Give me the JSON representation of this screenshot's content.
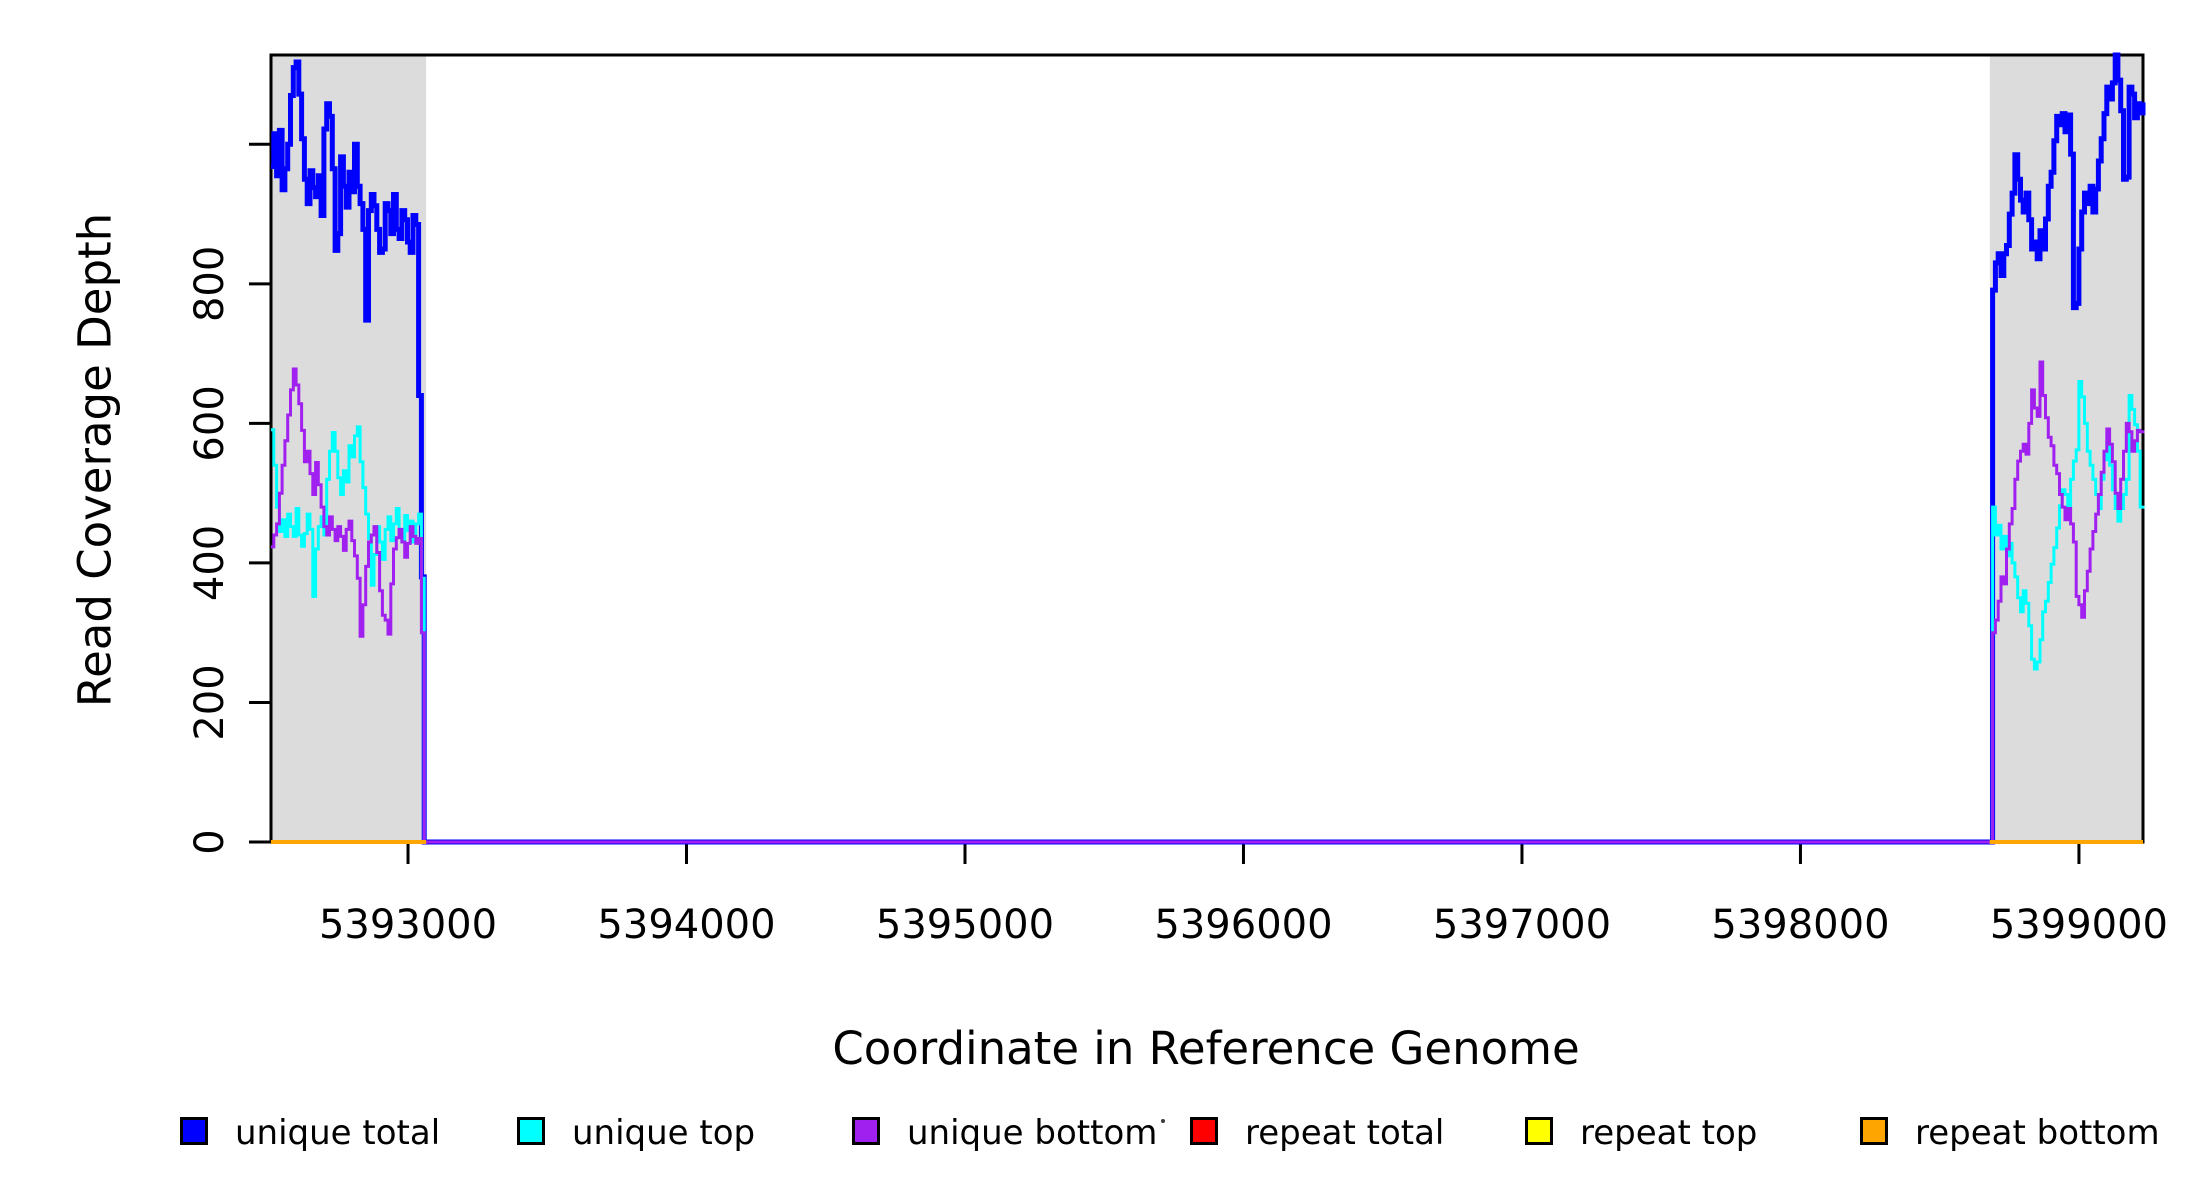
{
  "chart_data": {
    "type": "line",
    "subtype": "step-coverage",
    "title": "",
    "xlabel": "Coordinate in Reference Genome",
    "ylabel": "Read Coverage Depth",
    "xlim": [
      5392508,
      5399230
    ],
    "ylim": [
      0,
      1128
    ],
    "grid": false,
    "background": "#ffffff",
    "plot_box_color": "#000000",
    "x_ticks": [
      {
        "v": 5393000,
        "label": "5393000"
      },
      {
        "v": 5394000,
        "label": "5394000"
      },
      {
        "v": 5395000,
        "label": "5395000"
      },
      {
        "v": 5396000,
        "label": "5396000"
      },
      {
        "v": 5397000,
        "label": "5397000"
      },
      {
        "v": 5398000,
        "label": "5398000"
      },
      {
        "v": 5399000,
        "label": "5399000"
      }
    ],
    "y_ticks": [
      {
        "v": 0,
        "label": "0"
      },
      {
        "v": 200,
        "label": "200"
      },
      {
        "v": 400,
        "label": "400"
      },
      {
        "v": 600,
        "label": "600"
      },
      {
        "v": 800,
        "label": "800"
      },
      {
        "v": 1000,
        "label": ""
      }
    ],
    "shaded_regions": [
      {
        "name": "repeat-region-left",
        "x0": 5392508,
        "x1": 5393065,
        "color": "#DCDCDC"
      },
      {
        "name": "repeat-region-right",
        "x0": 5398680,
        "x1": 5399230,
        "color": "#DCDCDC"
      }
    ],
    "legend": {
      "position": "bottom",
      "entries": [
        {
          "label": "unique total",
          "color": "#0000FF"
        },
        {
          "label": "unique top",
          "color": "#00FFFF"
        },
        {
          "label": "unique bottom",
          "color": "#A020F0"
        },
        {
          "label": "repeat total",
          "color": "#FF0000"
        },
        {
          "label": "repeat top",
          "color": "#FFFF00"
        },
        {
          "label": "repeat bottom",
          "color": "#FFA500"
        }
      ]
    },
    "series": [
      {
        "name": "unique total",
        "color": "#0000FF",
        "width": 5,
        "connect": true,
        "segments": [
          {
            "x0": 5392508,
            "dx": 10,
            "values": [
              968,
              1015,
              955,
              1020,
              935,
              965,
              1000,
              1070,
              1110,
              1118,
              1072,
              1008,
              950,
              915,
              962,
              938,
              925,
              955,
              898,
              1022,
              1058,
              1040,
              965,
              848,
              872,
              982,
              940,
              910,
              960,
              932,
              1000,
              940,
              915,
              878,
              748,
              905,
              928,
              912,
              878,
              845,
              850,
              915,
              905,
              872,
              928,
              878,
              865,
              905,
              892,
              860,
              845,
              898,
              885,
              640,
              380,
              0
            ]
          },
          {
            "x0": 5393058,
            "dx": 5632,
            "values": [
              0,
              0
            ]
          },
          {
            "x0": 5398690,
            "dx": 10,
            "values": [
              791,
              830,
              843,
              812,
              843,
              855,
              900,
              930,
              985,
              950,
              920,
              903,
              930,
              892,
              850,
              860,
              836,
              876,
              850,
              893,
              940,
              960,
              1005,
              1040,
              1028,
              1044,
              1018,
              1042,
              986,
              766,
              772,
              850,
              903,
              930,
              915,
              940,
              903,
              936,
              976,
              1008,
              1044,
              1082,
              1065,
              1088,
              1128,
              1092,
              1048,
              950,
              953,
              1082,
              1072,
              1038,
              1058,
              1045,
              1060
            ]
          }
        ]
      },
      {
        "name": "unique top",
        "color": "#00FFFF",
        "width": 3,
        "connect": true,
        "segments": [
          {
            "x0": 5392508,
            "dx": 10,
            "values": [
              591,
              540,
              480,
              445,
              462,
              438,
              470,
              452,
              438,
              478,
              440,
              424,
              442,
              470,
              448,
              352,
              420,
              452,
              466,
              440,
              520,
              560,
              587,
              560,
              522,
              498,
              532,
              516,
              568,
              552,
              582,
              595,
              545,
              508,
              470,
              435,
              368,
              412,
              452,
              430,
              405,
              448,
              466,
              432,
              456,
              478,
              440,
              430,
              468,
              446,
              460,
              430,
              456,
              470,
              378,
              0
            ]
          },
          {
            "x0": 5393058,
            "dx": 5632,
            "values": [
              0,
              0
            ]
          },
          {
            "x0": 5398690,
            "dx": 10,
            "values": [
              480,
              440,
              454,
              420,
              438,
              410,
              428,
              400,
              380,
              350,
              330,
              360,
              342,
              310,
              262,
              248,
              258,
              290,
              330,
              345,
              372,
              398,
              422,
              450,
              482,
              505,
              498,
              478,
              520,
              546,
              562,
              660,
              638,
              600,
              560,
              540,
              520,
              498,
              478,
              520,
              548,
              572,
              540,
              505,
              478,
              460,
              478,
              498,
              520,
              640,
              620,
              598,
              560,
              480,
              482
            ]
          }
        ]
      },
      {
        "name": "unique bottom",
        "color": "#A020F0",
        "width": 3,
        "connect": true,
        "segments": [
          {
            "x0": 5392508,
            "dx": 10,
            "values": [
              423,
              440,
              456,
              500,
              540,
              575,
              612,
              648,
              678,
              655,
              628,
              590,
              545,
              560,
              528,
              498,
              544,
              512,
              480,
              452,
              440,
              466,
              448,
              432,
              452,
              438,
              418,
              448,
              460,
              432,
              410,
              378,
              295,
              340,
              395,
              430,
              440,
              452,
              415,
              360,
              325,
              318,
              298,
              370,
              420,
              436,
              448,
              430,
              408,
              428,
              452,
              438,
              428,
              435,
              300,
              0
            ]
          },
          {
            "x0": 5393058,
            "dx": 5632,
            "values": [
              0,
              0
            ]
          },
          {
            "x0": 5398690,
            "dx": 10,
            "values": [
              300,
              318,
              345,
              380,
              370,
              420,
              456,
              478,
              520,
              546,
              560,
              570,
              556,
              600,
              648,
              622,
              610,
              688,
              640,
              608,
              580,
              568,
              540,
              528,
              498,
              480,
              462,
              478,
              456,
              430,
              352,
              340,
              322,
              360,
              388,
              420,
              445,
              470,
              498,
              530,
              560,
              592,
              570,
              545,
              500,
              478,
              520,
              560,
              600,
              588,
              560,
              575,
              590,
              588,
              590
            ]
          }
        ]
      },
      {
        "name": "repeat total",
        "color": "#FF0000",
        "width": 3,
        "connect": false,
        "segments": [
          {
            "x0": 5392508,
            "dx": 557,
            "values": [
              0,
              0
            ]
          },
          {
            "x0": 5398680,
            "dx": 550,
            "values": [
              0,
              0
            ]
          }
        ]
      },
      {
        "name": "repeat top",
        "color": "#FFFF00",
        "width": 3,
        "connect": false,
        "segments": [
          {
            "x0": 5392508,
            "dx": 557,
            "values": [
              0,
              0
            ]
          },
          {
            "x0": 5398680,
            "dx": 550,
            "values": [
              0,
              0
            ]
          }
        ]
      },
      {
        "name": "repeat bottom",
        "color": "#FFA500",
        "width": 4,
        "connect": false,
        "segments": [
          {
            "x0": 5392508,
            "dx": 557,
            "values": [
              0,
              0
            ]
          },
          {
            "x0": 5398680,
            "dx": 550,
            "values": [
              0,
              0
            ]
          }
        ]
      }
    ]
  }
}
